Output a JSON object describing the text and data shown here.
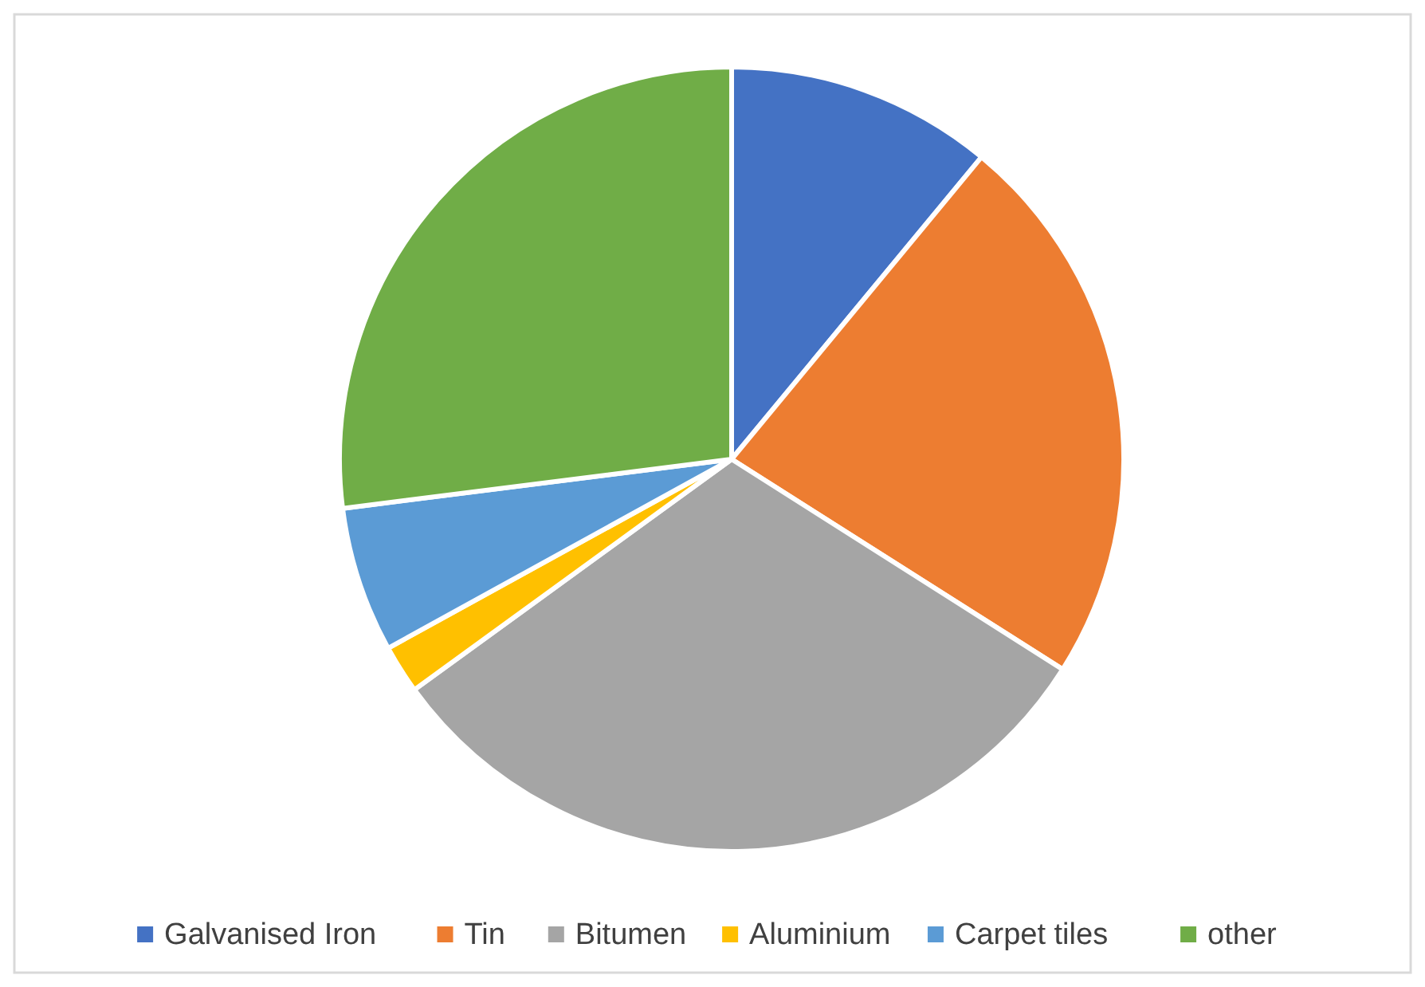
{
  "chart_data": {
    "type": "pie",
    "categories": [
      "Galvanised Iron",
      "Tin",
      "Bitumen",
      "Aluminium",
      "Carpet tiles",
      "other"
    ],
    "values": [
      11,
      23,
      31,
      2,
      6,
      27
    ],
    "colors": [
      "#4472c4",
      "#ed7d31",
      "#a5a5a5",
      "#ffc000",
      "#5b9bd5",
      "#70ad47"
    ],
    "legend": "bottom"
  }
}
